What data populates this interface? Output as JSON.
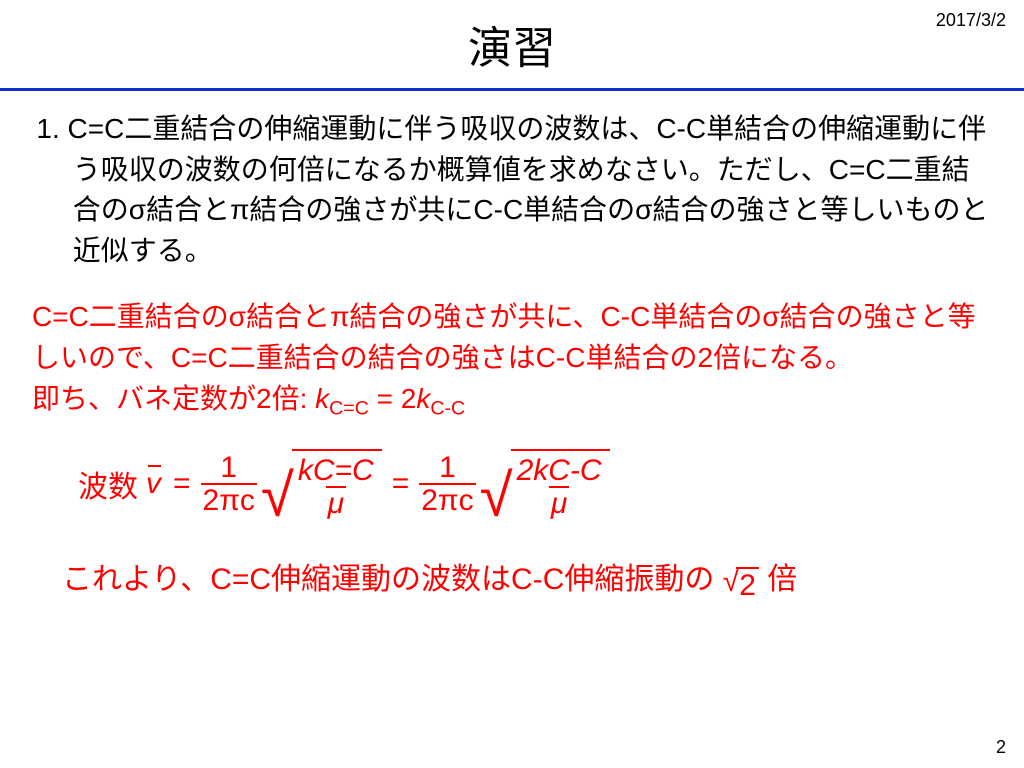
{
  "meta": {
    "date": "2017/3/2",
    "page_number": "2"
  },
  "title": "演習",
  "question": {
    "text": "1. C=C二重結合の伸縮運動に伴う吸収の波数は、C-C単結合の伸縮運動に伴う吸収の波数の何倍になるか概算値を求めなさい。ただし、C=C二重結合のσ結合とπ結合の強さが共にC-C単結合のσ結合の強さと等しいものと近似する。"
  },
  "answer": {
    "para1": "C=C二重結合のσ結合とπ結合の強さが共に、C-C単結合のσ結合の強さと等しいので、C=C二重結合の結合の強さはC-C単結合の2倍になる。",
    "para2_prefix": "即ち、バネ定数が2倍: ",
    "k_dc_label": "k",
    "k_dc_sub": "C=C",
    "eq_mid": " = 2",
    "k_sc_label": "k",
    "k_sc_sub": "C-C"
  },
  "formula": {
    "wavenumber_label": "波数",
    "v": "v",
    "eq": "=",
    "frac1_num": "1",
    "frac1_den": "2πc",
    "sqrt1_num_k": "k",
    "sqrt1_num_sub": "C=C",
    "sqrt1_den": "μ",
    "frac2_num": "1",
    "frac2_den": "2πc",
    "sqrt2_num_prefix": "2",
    "sqrt2_num_k": "k",
    "sqrt2_num_sub": "C-C",
    "sqrt2_den": "μ"
  },
  "conclusion": {
    "prefix": "これより、C=C伸縮運動の波数はC-C伸縮振動の ",
    "sqrt_val": "2",
    "suffix": " 倍"
  },
  "colors": {
    "divider": "#1030d0",
    "answer": "#ff0000",
    "text": "#000000",
    "background": "#ffffff"
  }
}
